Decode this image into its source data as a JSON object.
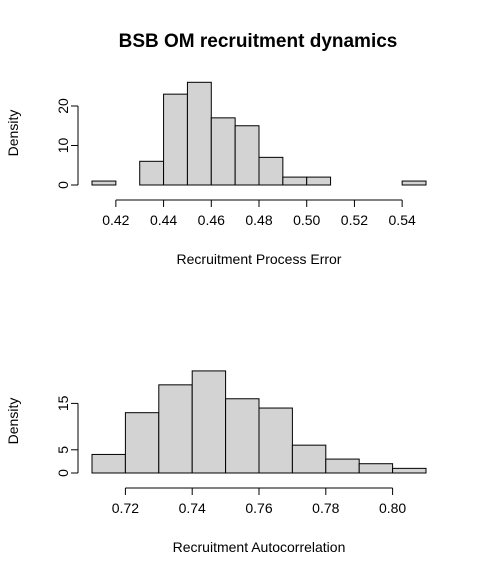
{
  "title": "BSB OM recruitment dynamics",
  "chart_data": [
    {
      "type": "bar",
      "histogram": true,
      "xlabel": "Recruitment Process Error",
      "ylabel": "Density",
      "xlim": [
        0.41,
        0.55
      ],
      "ylim": [
        0,
        26
      ],
      "bin_edges": [
        0.41,
        0.42,
        0.43,
        0.44,
        0.45,
        0.46,
        0.47,
        0.48,
        0.49,
        0.5,
        0.51,
        0.52,
        0.53,
        0.54,
        0.55
      ],
      "values": [
        1,
        0,
        6,
        23,
        26,
        17,
        15,
        7,
        2,
        2,
        0,
        0,
        0,
        1
      ],
      "x_ticks": [
        "0.42",
        "0.44",
        "0.46",
        "0.48",
        "0.50",
        "0.52",
        "0.54"
      ],
      "y_ticks": [
        "0",
        "10",
        "20"
      ]
    },
    {
      "type": "bar",
      "histogram": true,
      "xlabel": "Recruitment Autocorrelation",
      "ylabel": "Density",
      "xlim": [
        0.71,
        0.81
      ],
      "ylim": [
        0,
        22
      ],
      "bin_edges": [
        0.71,
        0.72,
        0.73,
        0.74,
        0.75,
        0.76,
        0.77,
        0.78,
        0.79,
        0.8,
        0.81
      ],
      "values": [
        4,
        13,
        19,
        22,
        16,
        14,
        6,
        3,
        2,
        1
      ],
      "x_ticks": [
        "0.72",
        "0.74",
        "0.76",
        "0.78",
        "0.80"
      ],
      "y_ticks": [
        "0",
        "5",
        "15"
      ]
    }
  ]
}
